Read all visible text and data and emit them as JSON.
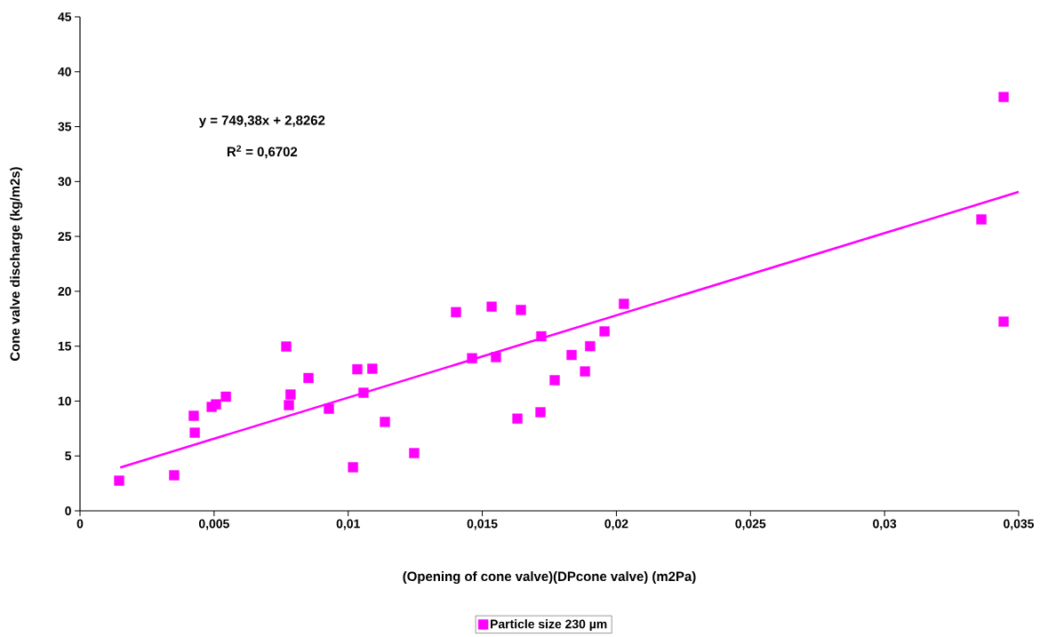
{
  "chart_data": {
    "type": "scatter",
    "xlabel": "(Opening of cone valve)(DPcone valve) (m2Pa)",
    "ylabel": "Cone valve discharge (kg/m2s)",
    "annotations": [
      "y = 749,38x + 2,8262",
      "R$^{2}$ = 0,6702"
    ],
    "xlim": [
      0,
      0.035
    ],
    "ylim": [
      0,
      45
    ],
    "xticks": [
      0,
      {
        "value": 0.005,
        "label": "0,005"
      },
      {
        "value": 0.01,
        "label": "0,01"
      },
      {
        "value": 0.015,
        "label": "0,015"
      },
      {
        "value": 0.02,
        "label": "0,02"
      },
      {
        "value": 0.025,
        "label": "0,025"
      },
      {
        "value": 0.03,
        "label": "0,03"
      },
      {
        "value": 0.035,
        "label": "0,035"
      }
    ],
    "yticks": [
      0,
      5,
      10,
      15,
      20,
      25,
      30,
      35,
      40,
      45
    ],
    "grid": false,
    "legend": "bottom",
    "marker": "square",
    "series": [
      {
        "name": "Particle size 230 µm",
        "color": "#ff00ff",
        "x": [
          0.00146,
          0.00351,
          0.00424,
          0.00428,
          0.00491,
          0.00507,
          0.00544,
          0.00769,
          0.00779,
          0.00785,
          0.00852,
          0.00928,
          0.01018,
          0.01034,
          0.01057,
          0.0109,
          0.01137,
          0.01246,
          0.01402,
          0.01462,
          0.01535,
          0.01551,
          0.01644,
          0.01631,
          0.0172,
          0.01717,
          0.0177,
          0.01833,
          0.01883,
          0.01902,
          0.01956,
          0.02028,
          0.03361,
          0.03444,
          0.03444
        ],
        "values": [
          2.75,
          3.24,
          8.66,
          7.12,
          9.47,
          9.7,
          10.4,
          14.97,
          9.63,
          10.6,
          12.1,
          9.3,
          3.97,
          12.9,
          10.76,
          12.95,
          8.1,
          5.26,
          18.1,
          13.9,
          18.6,
          14.0,
          18.3,
          8.4,
          15.9,
          8.98,
          11.9,
          14.2,
          12.7,
          15.0,
          16.35,
          18.86,
          26.55,
          37.7,
          17.24
        ]
      },
      {
        "color": "#ff00ff",
        "type": "line",
        "marker": "none",
        "x": [
          0.0015,
          0.035
        ],
        "values": [
          3.95,
          29.05
        ]
      }
    ]
  }
}
